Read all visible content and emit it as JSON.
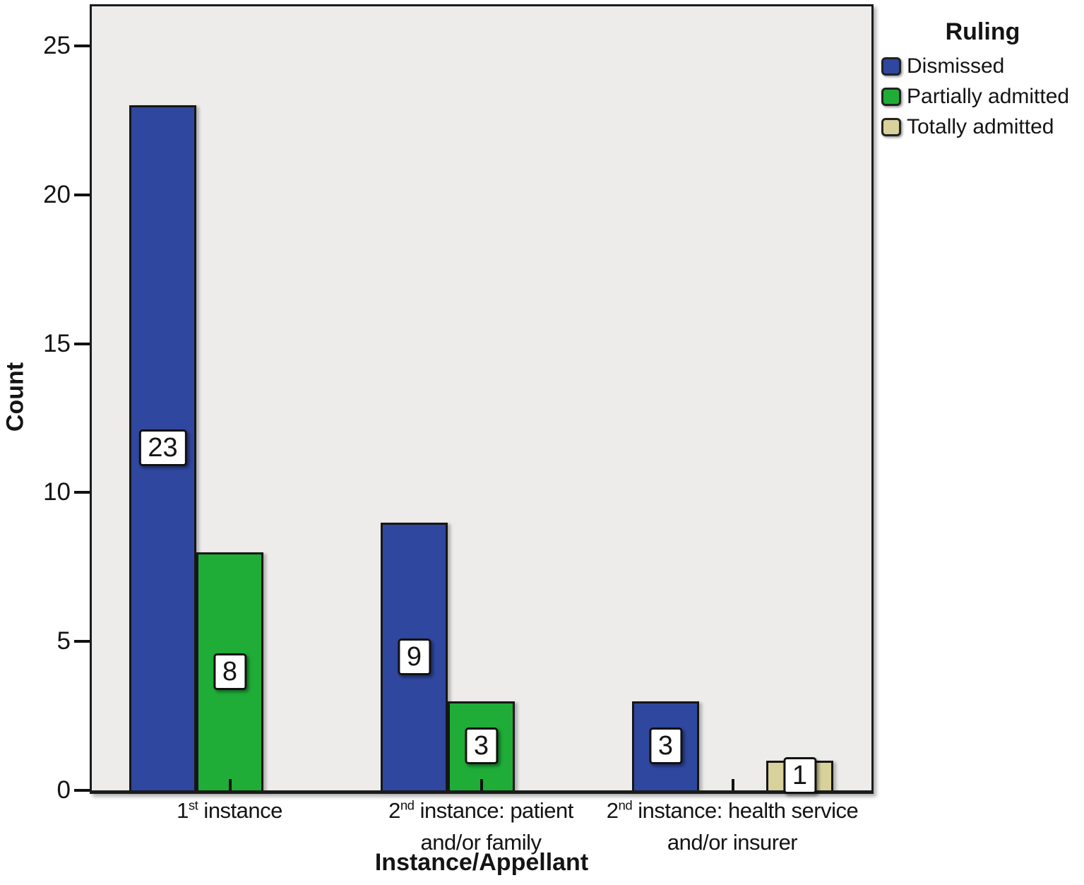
{
  "chart_data": {
    "type": "bar",
    "title": "",
    "x_axis_title": "Instance/Appellant",
    "y_axis_title": "Count",
    "categories": [
      "1st instance",
      "2nd instance: patient and/or family",
      "2nd instance: health service and/or insurer"
    ],
    "category_label_parts": [
      {
        "line1_base": "1",
        "line1_sup": "st",
        "line1_rest": " instance",
        "line2": ""
      },
      {
        "line1_base": "2",
        "line1_sup": "nd",
        "line1_rest": " instance: patient",
        "line2": "and/or family"
      },
      {
        "line1_base": "2",
        "line1_sup": "nd",
        "line1_rest": " instance: health service",
        "line2": "and/or insurer"
      }
    ],
    "series": [
      {
        "name": "Dismissed",
        "color": "#2f479f",
        "values": [
          23,
          9,
          3
        ]
      },
      {
        "name": "Partially admitted",
        "color": "#1fad38",
        "values": [
          8,
          3,
          0
        ]
      },
      {
        "name": "Totally admitted",
        "color": "#d8d19b",
        "values": [
          0,
          0,
          1
        ]
      }
    ],
    "bar_value_labels_visible": true,
    "ylim": [
      0,
      25
    ],
    "yticks": [
      0,
      5,
      10,
      15,
      20,
      25
    ],
    "grid": false,
    "plot_background": "#edecea",
    "legend": {
      "title": "Ruling",
      "position": "outside-top-right",
      "items": [
        {
          "label": "Dismissed",
          "color": "#2f479f"
        },
        {
          "label": "Partially admitted",
          "color": "#1fad38"
        },
        {
          "label": "Totally admitted",
          "color": "#d8d19b"
        }
      ]
    }
  }
}
